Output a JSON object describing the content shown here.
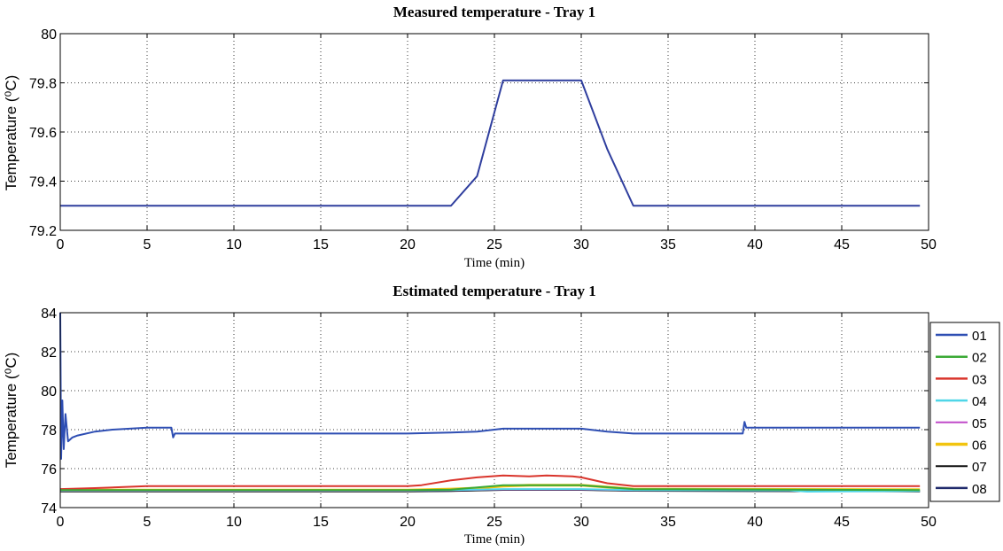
{
  "chart_data": [
    {
      "type": "line",
      "title": "Measured temperature - Tray 1",
      "xlabel": "Time (min)",
      "ylabel": "Temperature (⁰C)",
      "xlim": [
        0,
        50
      ],
      "ylim": [
        79.2,
        80
      ],
      "xticks": [
        0,
        5,
        10,
        15,
        20,
        25,
        30,
        35,
        40,
        45,
        50
      ],
      "yticks": [
        79.2,
        79.4,
        79.6,
        79.8,
        80
      ],
      "ytick_labels": [
        "79.2",
        "79.4",
        "79.6",
        "79.8",
        "80"
      ],
      "grid": true,
      "series": [
        {
          "color": "#2f3e9e",
          "x": [
            0,
            22.5,
            24,
            25.5,
            30,
            31.5,
            33,
            49.5
          ],
          "y": [
            79.3,
            79.3,
            79.42,
            79.81,
            79.81,
            79.53,
            79.3,
            79.3
          ]
        }
      ]
    },
    {
      "type": "line",
      "title": "Estimated temperature - Tray 1",
      "xlabel": "Time (min)",
      "ylabel": "Temperature (⁰C)",
      "xlim": [
        0,
        50
      ],
      "ylim": [
        74,
        84
      ],
      "xticks": [
        0,
        5,
        10,
        15,
        20,
        25,
        30,
        35,
        40,
        45,
        50
      ],
      "yticks": [
        74,
        76,
        78,
        80,
        82,
        84
      ],
      "ytick_labels": [
        "74",
        "76",
        "78",
        "80",
        "82",
        "84"
      ],
      "grid": true,
      "legend_position": "right",
      "series": [
        {
          "name": "01",
          "color": "#2e4eb3",
          "width": 2,
          "x": [
            0,
            0.05,
            0.12,
            0.2,
            0.3,
            0.45,
            0.7,
            1,
            2,
            3,
            4,
            5,
            6.4,
            6.5,
            6.6,
            10,
            20,
            22.5,
            24,
            25.5,
            30,
            31.5,
            33,
            39.3,
            39.4,
            39.5,
            39.6,
            49.5
          ],
          "y": [
            84,
            76.5,
            79.5,
            77,
            78.8,
            77.4,
            77.6,
            77.7,
            77.9,
            78.0,
            78.05,
            78.1,
            78.1,
            77.6,
            77.8,
            77.8,
            77.8,
            77.85,
            77.9,
            78.05,
            78.05,
            77.9,
            77.8,
            77.8,
            78.4,
            78.1,
            78.1,
            78.1
          ]
        },
        {
          "name": "02",
          "color": "#3aa935",
          "width": 2,
          "x": [
            0,
            20,
            22.5,
            25.5,
            30,
            33,
            49.5
          ],
          "y": [
            74.9,
            74.9,
            74.92,
            75.15,
            75.15,
            74.95,
            74.9
          ]
        },
        {
          "name": "03",
          "color": "#d9342b",
          "width": 2,
          "x": [
            0,
            2,
            5,
            10,
            20,
            20.8,
            22.5,
            24,
            25.5,
            27,
            28,
            29.5,
            30,
            31.5,
            33,
            49.5
          ],
          "y": [
            74.95,
            75.0,
            75.1,
            75.1,
            75.1,
            75.15,
            75.4,
            75.55,
            75.65,
            75.6,
            75.65,
            75.6,
            75.55,
            75.25,
            75.1,
            75.1
          ]
        },
        {
          "name": "04",
          "color": "#4fd6e8",
          "width": 2,
          "x": [
            0,
            20,
            22.5,
            25.5,
            30,
            33,
            42,
            43,
            49.5
          ],
          "y": [
            74.88,
            74.88,
            74.9,
            74.95,
            74.95,
            74.9,
            74.88,
            74.82,
            74.85
          ]
        },
        {
          "name": "05",
          "color": "#c04ac9",
          "width": 1.5,
          "x": [
            0,
            20,
            22.5,
            25.5,
            30,
            33,
            49.5
          ],
          "y": [
            74.86,
            74.86,
            74.88,
            74.92,
            74.92,
            74.88,
            74.86
          ]
        },
        {
          "name": "06",
          "color": "#f2c40f",
          "width": 3,
          "x": [
            0,
            20,
            22.5,
            24,
            25.5,
            27,
            30,
            31.5,
            33,
            49.5
          ],
          "y": [
            74.9,
            74.9,
            74.95,
            75.0,
            75.1,
            75.15,
            75.15,
            75.05,
            74.95,
            74.92
          ]
        },
        {
          "name": "07",
          "color": "#111111",
          "width": 1.5,
          "x": [
            0,
            20,
            22.5,
            25.5,
            30,
            33,
            49.5
          ],
          "y": [
            74.82,
            74.82,
            74.84,
            74.9,
            74.9,
            74.85,
            74.82
          ]
        },
        {
          "name": "08",
          "color": "#1f2a6b",
          "width": 2,
          "x": [
            0,
            20,
            22.5,
            25.5,
            30,
            33,
            49.5
          ],
          "y": [
            74.84,
            74.84,
            74.86,
            74.92,
            74.92,
            74.87,
            74.84
          ]
        }
      ]
    }
  ]
}
